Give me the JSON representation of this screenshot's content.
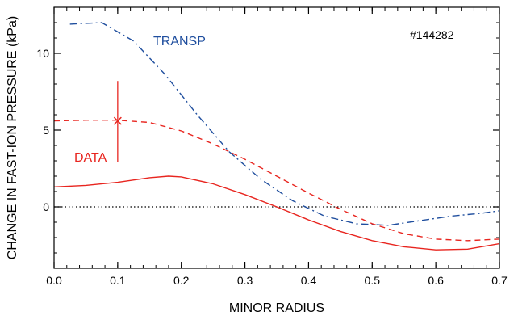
{
  "chart_data": {
    "type": "line",
    "title": "",
    "xlabel": "MINOR RADIUS",
    "ylabel": "CHANGE IN FAST-ION PRESSURE (kPa)",
    "xlim": [
      0.0,
      0.7
    ],
    "ylim": [
      -4.0,
      13.0
    ],
    "x_ticks": [
      0.0,
      0.1,
      0.2,
      0.3,
      0.4,
      0.5,
      0.6,
      0.7
    ],
    "x_tick_labels": [
      "0.0",
      "0.1",
      "0.2",
      "0.3",
      "0.4",
      "0.5",
      "0.6",
      "0.7"
    ],
    "y_ticks": [
      0,
      5,
      10
    ],
    "y_tick_labels": [
      "0",
      "5",
      "10"
    ],
    "grid": false,
    "zero_line": true,
    "annotations": [
      {
        "text": "TRANSP",
        "color": "#1f4e9e"
      },
      {
        "text": "DATA",
        "color": "#e8251f"
      },
      {
        "text": "#144282",
        "color": "#000000"
      }
    ],
    "series": [
      {
        "label": "TRANSP",
        "color": "#1f4e9e",
        "style": "dash-dot",
        "x": [
          0.025,
          0.075,
          0.125,
          0.175,
          0.225,
          0.275,
          0.325,
          0.375,
          0.425,
          0.475,
          0.525,
          0.575,
          0.625,
          0.675,
          0.7
        ],
        "y": [
          11.9,
          12.0,
          10.8,
          8.6,
          6.0,
          3.6,
          1.8,
          0.4,
          -0.6,
          -1.1,
          -1.2,
          -0.9,
          -0.6,
          -0.4,
          -0.25
        ]
      },
      {
        "label": "DATA (fit, dashed)",
        "color": "#e8251f",
        "style": "dashed",
        "x": [
          0.0,
          0.05,
          0.1,
          0.15,
          0.2,
          0.25,
          0.3,
          0.35,
          0.4,
          0.45,
          0.5,
          0.55,
          0.6,
          0.65,
          0.7
        ],
        "y": [
          5.6,
          5.65,
          5.65,
          5.5,
          4.95,
          4.1,
          3.1,
          2.0,
          0.9,
          -0.15,
          -1.1,
          -1.75,
          -2.1,
          -2.2,
          -2.1
        ]
      },
      {
        "label": "DATA (solid)",
        "color": "#e8251f",
        "style": "solid",
        "x": [
          0.0,
          0.05,
          0.1,
          0.15,
          0.18,
          0.2,
          0.25,
          0.3,
          0.35,
          0.4,
          0.45,
          0.5,
          0.55,
          0.6,
          0.65,
          0.7
        ],
        "y": [
          1.3,
          1.4,
          1.6,
          1.9,
          2.0,
          1.95,
          1.5,
          0.8,
          0.0,
          -0.85,
          -1.6,
          -2.2,
          -2.6,
          -2.8,
          -2.75,
          -2.4
        ]
      }
    ],
    "data_points": [
      {
        "x": 0.1,
        "y": 5.6,
        "y_err_low": 2.9,
        "y_err_high": 8.2,
        "marker": "x",
        "color": "#e8251f"
      }
    ]
  }
}
